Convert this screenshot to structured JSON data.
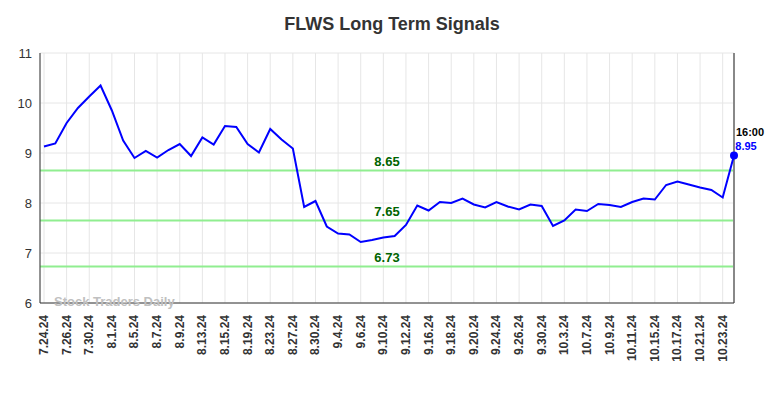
{
  "chart_data": {
    "type": "line",
    "title": "FLWS Long Term Signals",
    "watermark": "Stock Traders Daily",
    "annotation": "16:00",
    "categories": [
      "7.24.24",
      null,
      "7.26.24",
      null,
      "7.30.24",
      null,
      "8.1.24",
      null,
      "8.5.24",
      null,
      "8.7.24",
      null,
      "8.9.24",
      null,
      "8.13.24",
      null,
      "8.15.24",
      null,
      "8.19.24",
      null,
      "8.23.24",
      null,
      "8.27.24",
      null,
      "8.30.24",
      null,
      "9.4.24",
      null,
      "9.6.24",
      null,
      "9.10.24",
      null,
      "9.12.24",
      null,
      "9.16.24",
      null,
      "9.18.24",
      null,
      "9.20.24",
      null,
      "9.24.24",
      null,
      "9.26.24",
      null,
      "9.30.24",
      null,
      "10.3.24",
      null,
      "10.7.24",
      null,
      "10.9.24",
      null,
      "10.11.24",
      null,
      "10.15.24",
      null,
      "10.17.24",
      null,
      "10.21.24",
      null,
      "10.23.24",
      null
    ],
    "values": [
      9.13,
      9.19,
      9.6,
      9.9,
      10.13,
      10.35,
      9.85,
      9.25,
      8.9,
      9.04,
      8.91,
      9.06,
      9.18,
      8.94,
      9.31,
      9.17,
      9.54,
      9.52,
      9.18,
      9.01,
      9.48,
      9.27,
      9.09,
      7.92,
      8.04,
      7.53,
      7.39,
      7.37,
      7.22,
      7.26,
      7.31,
      7.34,
      7.56,
      7.95,
      7.85,
      8.02,
      8.0,
      8.09,
      7.97,
      7.91,
      8.02,
      7.93,
      7.87,
      7.97,
      7.94,
      7.54,
      7.65,
      7.87,
      7.84,
      7.98,
      7.96,
      7.92,
      8.02,
      8.09,
      8.07,
      8.36,
      8.43,
      8.37,
      8.31,
      8.26,
      8.11,
      8.95
    ],
    "color": "#0000ff",
    "levels": [
      8.65,
      7.65,
      6.73
    ],
    "levels_color": "#90ee90",
    "ylim": [
      6,
      11
    ],
    "yticks": [
      6,
      7,
      8,
      9,
      10,
      11
    ],
    "grid": true
  }
}
